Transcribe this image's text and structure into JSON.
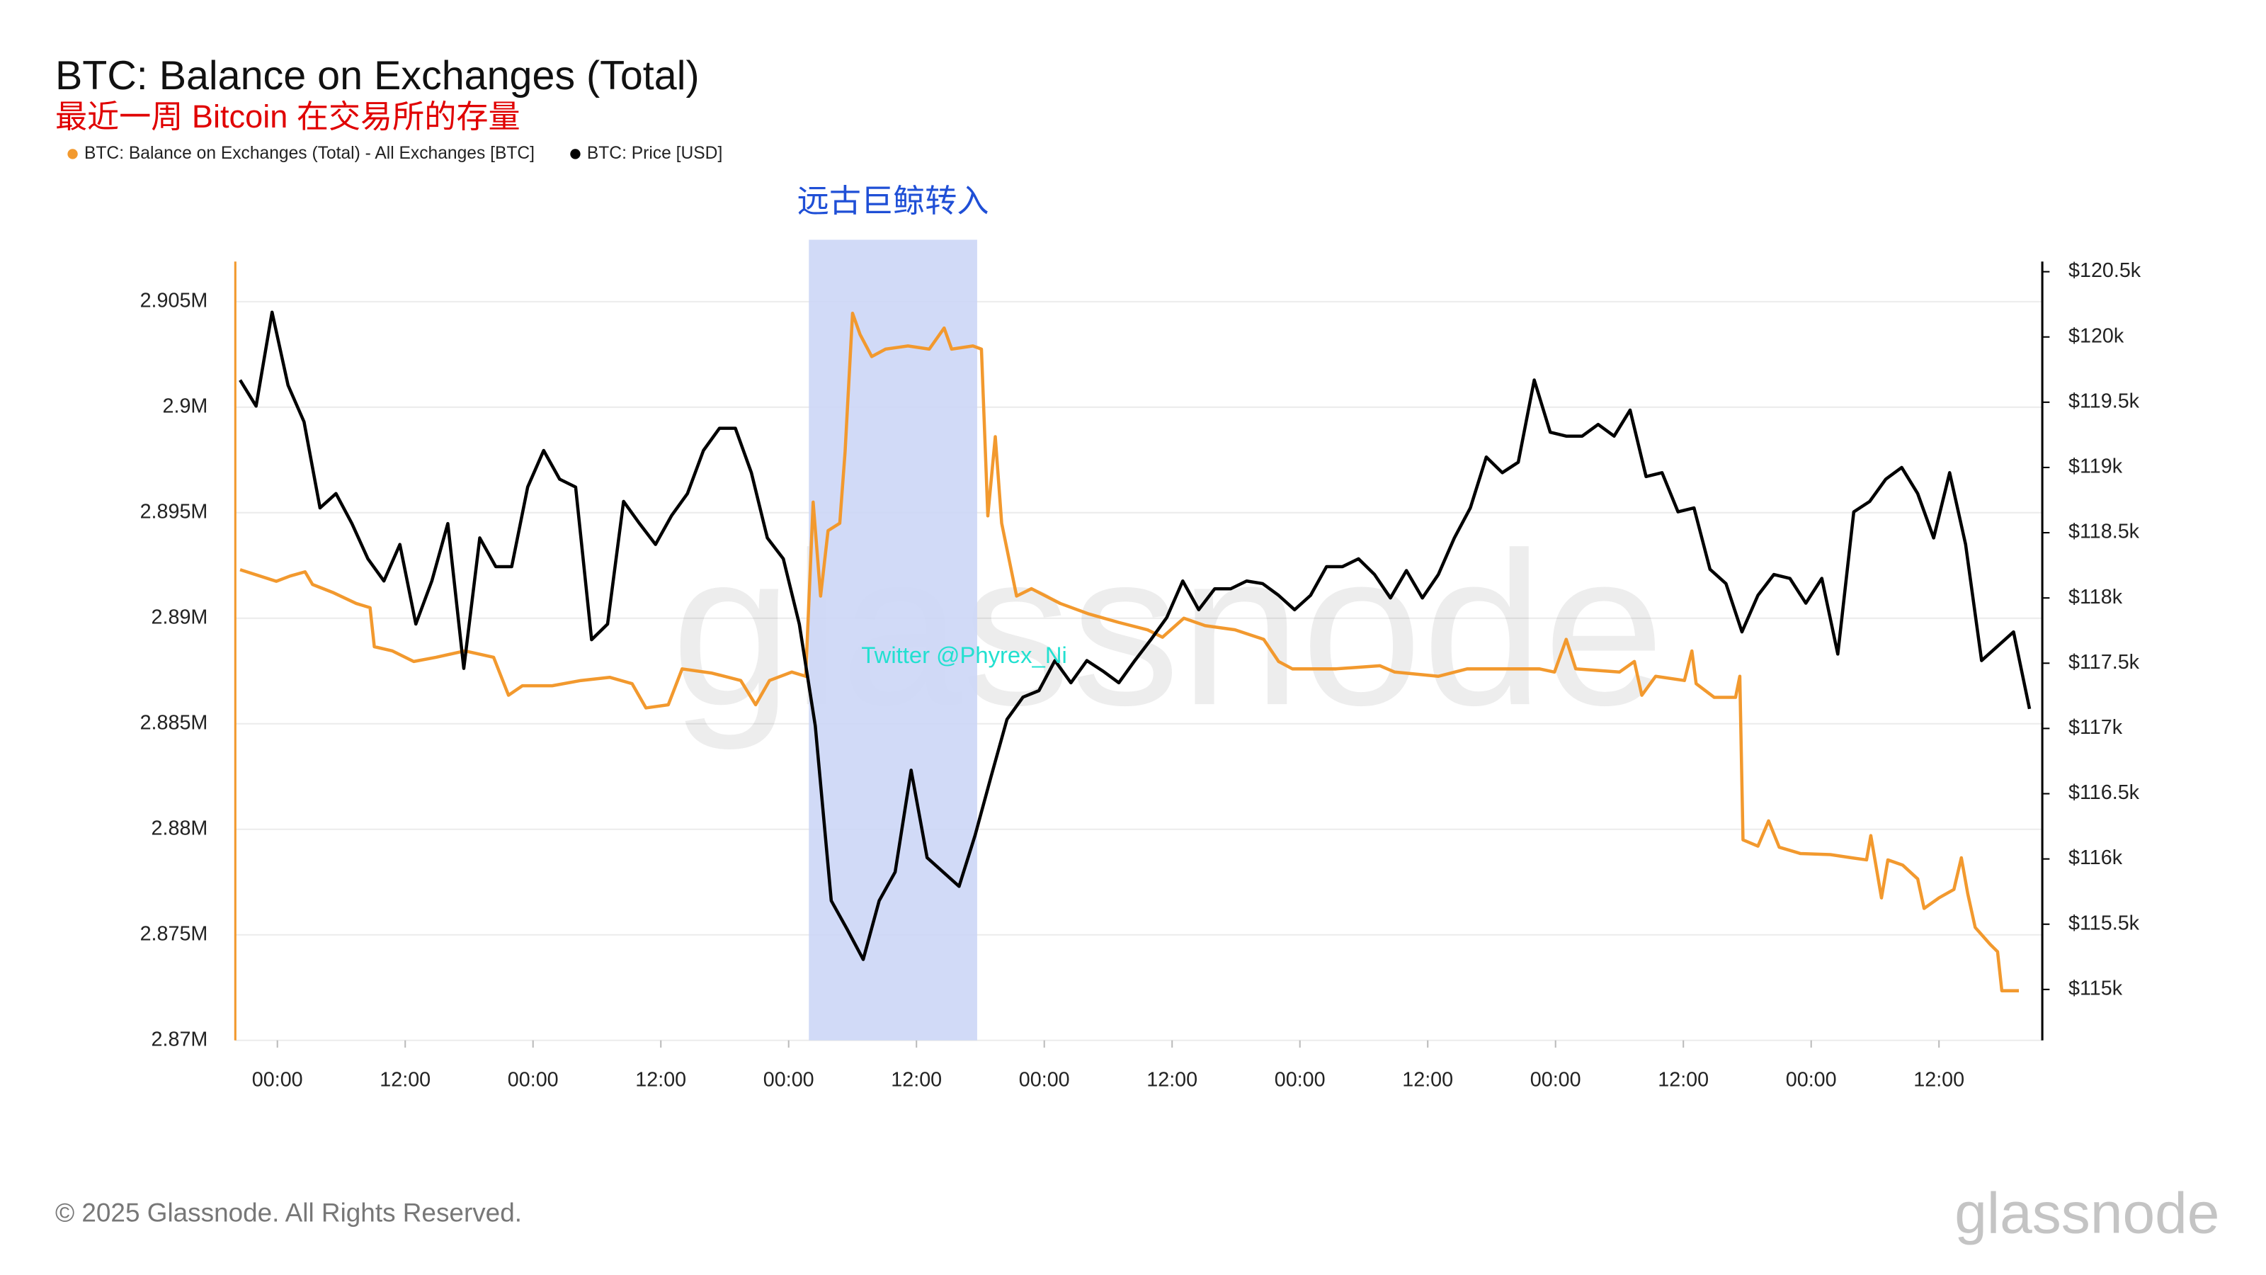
{
  "chart_data": {
    "type": "line",
    "title": "BTC: Balance on Exchanges (Total)",
    "subtitle": "最近一周 Bitcoin 在交易所的存量",
    "watermark": "glassnode",
    "credit": "Twitter @Phyrex_Ni",
    "annotations": [
      {
        "text": "远古巨鲸转入",
        "x0": 49.9,
        "x1": 65.7,
        "color": "#ccd6f6"
      }
    ],
    "grid": true,
    "xlim": [
      -3.95,
      165.7
    ],
    "xticks": [
      {
        "value": 0,
        "label": "00:00"
      },
      {
        "value": 12,
        "label": "12:00"
      },
      {
        "value": 24,
        "label": "00:00"
      },
      {
        "value": 36,
        "label": "12:00"
      },
      {
        "value": 48,
        "label": "00:00"
      },
      {
        "value": 60,
        "label": "12:00"
      },
      {
        "value": 72,
        "label": "00:00"
      },
      {
        "value": 84,
        "label": "12:00"
      },
      {
        "value": 96,
        "label": "00:00"
      },
      {
        "value": 108,
        "label": "12:00"
      },
      {
        "value": 120,
        "label": "00:00"
      },
      {
        "value": 132,
        "label": "12:00"
      },
      {
        "value": 144,
        "label": "00:00"
      },
      {
        "value": 156,
        "label": "12:00"
      }
    ],
    "ylim": [
      2870000,
      2906900
    ],
    "yticks": [
      {
        "value": 2870000,
        "label": "2.87M"
      },
      {
        "value": 2875000,
        "label": "2.875M"
      },
      {
        "value": 2880000,
        "label": "2.88M"
      },
      {
        "value": 2885000,
        "label": "2.885M"
      },
      {
        "value": 2890000,
        "label": "2.89M"
      },
      {
        "value": 2895000,
        "label": "2.895M"
      },
      {
        "value": 2900000,
        "label": "2.9M"
      },
      {
        "value": 2905000,
        "label": "2.905M"
      }
    ],
    "y2lim": [
      114610,
      120578
    ],
    "y2ticks": [
      {
        "value": 115000,
        "label": "$115k"
      },
      {
        "value": 115500,
        "label": "$115.5k"
      },
      {
        "value": 116000,
        "label": "$116k"
      },
      {
        "value": 116500,
        "label": "$116.5k"
      },
      {
        "value": 117000,
        "label": "$117k"
      },
      {
        "value": 117500,
        "label": "$117.5k"
      },
      {
        "value": 118000,
        "label": "$118k"
      },
      {
        "value": 118500,
        "label": "$118.5k"
      },
      {
        "value": 119000,
        "label": "$119k"
      },
      {
        "value": 119500,
        "label": "$119.5k"
      },
      {
        "value": 120000,
        "label": "$120k"
      },
      {
        "value": 120500,
        "label": "$120.5k"
      }
    ],
    "series": [
      {
        "name": "BTC: Balance on Exchanges (Total) - All Exchanges [BTC]",
        "color": "#f2992e",
        "x": [
          -3.5,
          -0.1,
          1.2,
          2.6,
          3.3,
          5.3,
          7.4,
          8.7,
          9.1,
          10.8,
          12.8,
          14.9,
          17.6,
          20.3,
          21.7,
          23.0,
          25.8,
          28.5,
          31.2,
          33.3,
          34.6,
          36.7,
          38.0,
          40.8,
          43.5,
          44.9,
          46.2,
          48.3,
          49.6,
          50.3,
          51.0,
          51.7,
          52.8,
          53.3,
          54.0,
          54.7,
          55.8,
          57.1,
          59.2,
          61.2,
          62.6,
          63.3,
          65.3,
          66.1,
          66.7,
          67.4,
          68.0,
          69.4,
          70.8,
          73.5,
          76.2,
          79.0,
          81.7,
          83.1,
          85.1,
          87.1,
          89.9,
          92.6,
          94.0,
          95.3,
          99.4,
          103.5,
          104.9,
          109.0,
          111.7,
          118.5,
          119.9,
          121.0,
          121.9,
          126.0,
          127.4,
          128.1,
          129.4,
          132.1,
          132.8,
          133.2,
          134.9,
          136.9,
          137.3,
          137.6,
          139.0,
          140.0,
          141.0,
          143.0,
          145.8,
          147.8,
          149.2,
          149.6,
          150.6,
          151.2,
          152.6,
          154.0,
          154.6,
          156.0,
          157.4,
          158.1,
          158.7,
          159.4,
          160.8,
          161.5,
          161.9,
          163.5
        ],
        "values": [
          2892300,
          2891750,
          2892000,
          2892200,
          2891600,
          2891200,
          2890700,
          2890500,
          2888650,
          2888450,
          2887950,
          2888150,
          2888450,
          2888150,
          2886350,
          2886800,
          2886800,
          2887050,
          2887200,
          2886900,
          2885750,
          2885900,
          2887600,
          2887400,
          2887050,
          2885900,
          2887050,
          2887450,
          2887250,
          2895500,
          2891050,
          2894150,
          2894500,
          2897900,
          2904450,
          2903450,
          2902400,
          2902750,
          2902900,
          2902750,
          2903750,
          2902750,
          2902900,
          2902750,
          2894850,
          2898600,
          2894500,
          2891050,
          2891400,
          2890700,
          2890200,
          2889800,
          2889450,
          2889100,
          2890000,
          2889650,
          2889450,
          2889000,
          2887950,
          2887600,
          2887600,
          2887750,
          2887450,
          2887250,
          2887600,
          2887600,
          2887450,
          2889000,
          2887600,
          2887450,
          2887950,
          2886350,
          2887250,
          2887050,
          2888450,
          2886900,
          2886250,
          2886250,
          2887250,
          2879500,
          2879200,
          2880400,
          2879150,
          2878850,
          2878800,
          2878650,
          2878550,
          2879700,
          2876750,
          2878550,
          2878300,
          2877650,
          2876250,
          2876750,
          2877150,
          2878650,
          2876950,
          2875350,
          2874550,
          2874200,
          2872350,
          2872350
        ]
      },
      {
        "name": "BTC: Price [USD]",
        "color": "#000000",
        "axis": "y2",
        "x": [
          -3.5,
          -2,
          -0.5,
          1,
          2.5,
          4,
          5.5,
          7,
          8.5,
          10,
          11.5,
          13,
          14.5,
          16,
          17.5,
          19,
          20.5,
          22,
          23.5,
          25,
          26.5,
          28,
          29.5,
          31,
          32.5,
          34,
          35.5,
          37,
          38.5,
          40,
          41.5,
          43,
          44.5,
          46,
          47.5,
          49,
          50.5,
          52,
          53.5,
          55,
          56.5,
          58,
          59.5,
          61,
          62.5,
          64,
          65.5,
          67,
          68.5,
          70,
          71.5,
          73,
          74.5,
          76,
          77.5,
          79,
          80.5,
          82,
          83.5,
          85,
          86.5,
          88,
          89.5,
          91,
          92.5,
          94,
          95.5,
          97,
          98.5,
          100,
          101.5,
          103,
          104.5,
          106,
          107.5,
          109,
          110.5,
          112,
          113.5,
          115,
          116.5,
          118,
          119.5,
          121,
          122.5,
          124,
          125.5,
          127,
          128.5,
          130,
          131.5,
          133,
          134.5,
          136,
          137.5,
          139,
          140.5,
          142,
          143.5,
          145,
          146.5,
          148,
          149.5,
          151,
          152.5,
          154,
          155.5,
          157,
          158.5,
          160,
          161.5,
          163,
          164.5
        ],
        "values": [
          119670,
          119470,
          120190,
          119630,
          119350,
          118690,
          118800,
          118570,
          118300,
          118130,
          118410,
          117800,
          118130,
          118570,
          117460,
          118460,
          118240,
          118240,
          118850,
          119130,
          118910,
          118850,
          117680,
          117800,
          118740,
          118570,
          118410,
          118630,
          118800,
          119130,
          119300,
          119300,
          118960,
          118460,
          118300,
          117800,
          117020,
          115680,
          115460,
          115230,
          115680,
          115900,
          116680,
          116010,
          115900,
          115790,
          116180,
          116630,
          117070,
          117240,
          117290,
          117520,
          117350,
          117520,
          117440,
          117350,
          117520,
          117680,
          117850,
          118130,
          117910,
          118070,
          118070,
          118130,
          118110,
          118020,
          117910,
          118020,
          118240,
          118240,
          118300,
          118180,
          118000,
          118210,
          118000,
          118180,
          118460,
          118690,
          119080,
          118960,
          119040,
          119670,
          119270,
          119240,
          119240,
          119330,
          119240,
          119440,
          118930,
          118960,
          118660,
          118690,
          118220,
          118110,
          117740,
          118020,
          118180,
          118150,
          117960,
          118150,
          117570,
          118660,
          118740,
          118910,
          119000,
          118800,
          118460,
          118960,
          118410,
          117520,
          117630,
          117740,
          117150
        ]
      }
    ]
  },
  "footer": {
    "copyright": "© 2025 Glassnode. All Rights Reserved.",
    "logo": "glassnode"
  }
}
